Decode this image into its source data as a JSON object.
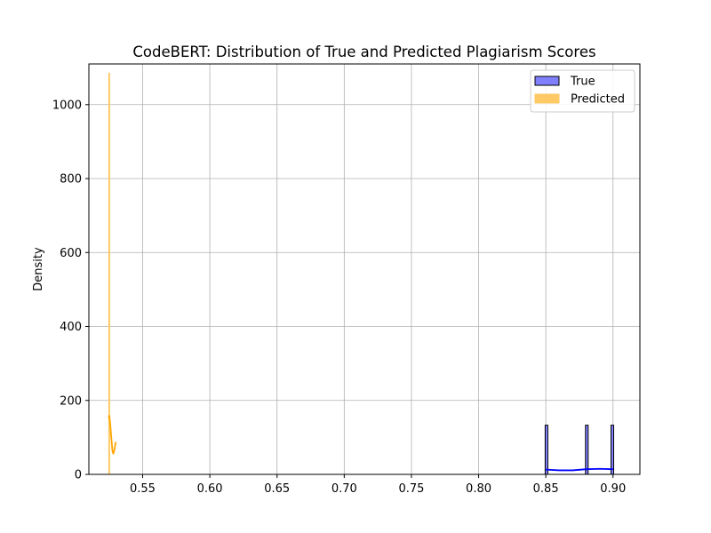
{
  "chart_data": {
    "type": "histogram",
    "title": "CodeBERT: Distribution of True and Predicted Plagiarism Scores",
    "xlabel": "",
    "ylabel": "Density",
    "xlim": [
      0.51,
      0.92
    ],
    "ylim": [
      0,
      1110
    ],
    "xticks": [
      0.55,
      0.6,
      0.65,
      0.7,
      0.75,
      0.8,
      0.85,
      0.9
    ],
    "xtick_labels": [
      "0.55",
      "0.60",
      "0.65",
      "0.70",
      "0.75",
      "0.80",
      "0.85",
      "0.90"
    ],
    "yticks": [
      0,
      200,
      400,
      600,
      800,
      1000
    ],
    "ytick_labels": [
      "0",
      "200",
      "400",
      "600",
      "800",
      "1000"
    ],
    "grid": true,
    "legend_position": "top-right",
    "series": [
      {
        "name": "True",
        "fill": "#8080ff",
        "edge": "#000000",
        "kde_color": "#0000ff",
        "bars": [
          {
            "x0": 0.8495,
            "x1": 0.8515,
            "height": 133
          },
          {
            "x0": 0.8795,
            "x1": 0.8815,
            "height": 133
          },
          {
            "x0": 0.8985,
            "x1": 0.9005,
            "height": 133
          }
        ],
        "kde": [
          [
            0.85,
            13
          ],
          [
            0.86,
            11
          ],
          [
            0.87,
            11
          ],
          [
            0.88,
            14
          ],
          [
            0.89,
            15
          ],
          [
            0.9,
            14
          ]
        ]
      },
      {
        "name": "Predicted",
        "fill": "#ffc966",
        "edge": "#ffc966",
        "kde_color": "#ffa500",
        "bars": [
          {
            "x0": 0.5248,
            "x1": 0.5252,
            "height": 1085
          }
        ],
        "kde": [
          [
            0.5248,
            152
          ],
          [
            0.5252,
            160
          ],
          [
            0.5258,
            140
          ],
          [
            0.5268,
            95
          ],
          [
            0.5275,
            65
          ],
          [
            0.5282,
            55
          ],
          [
            0.5292,
            70
          ],
          [
            0.53,
            88
          ]
        ]
      }
    ]
  }
}
